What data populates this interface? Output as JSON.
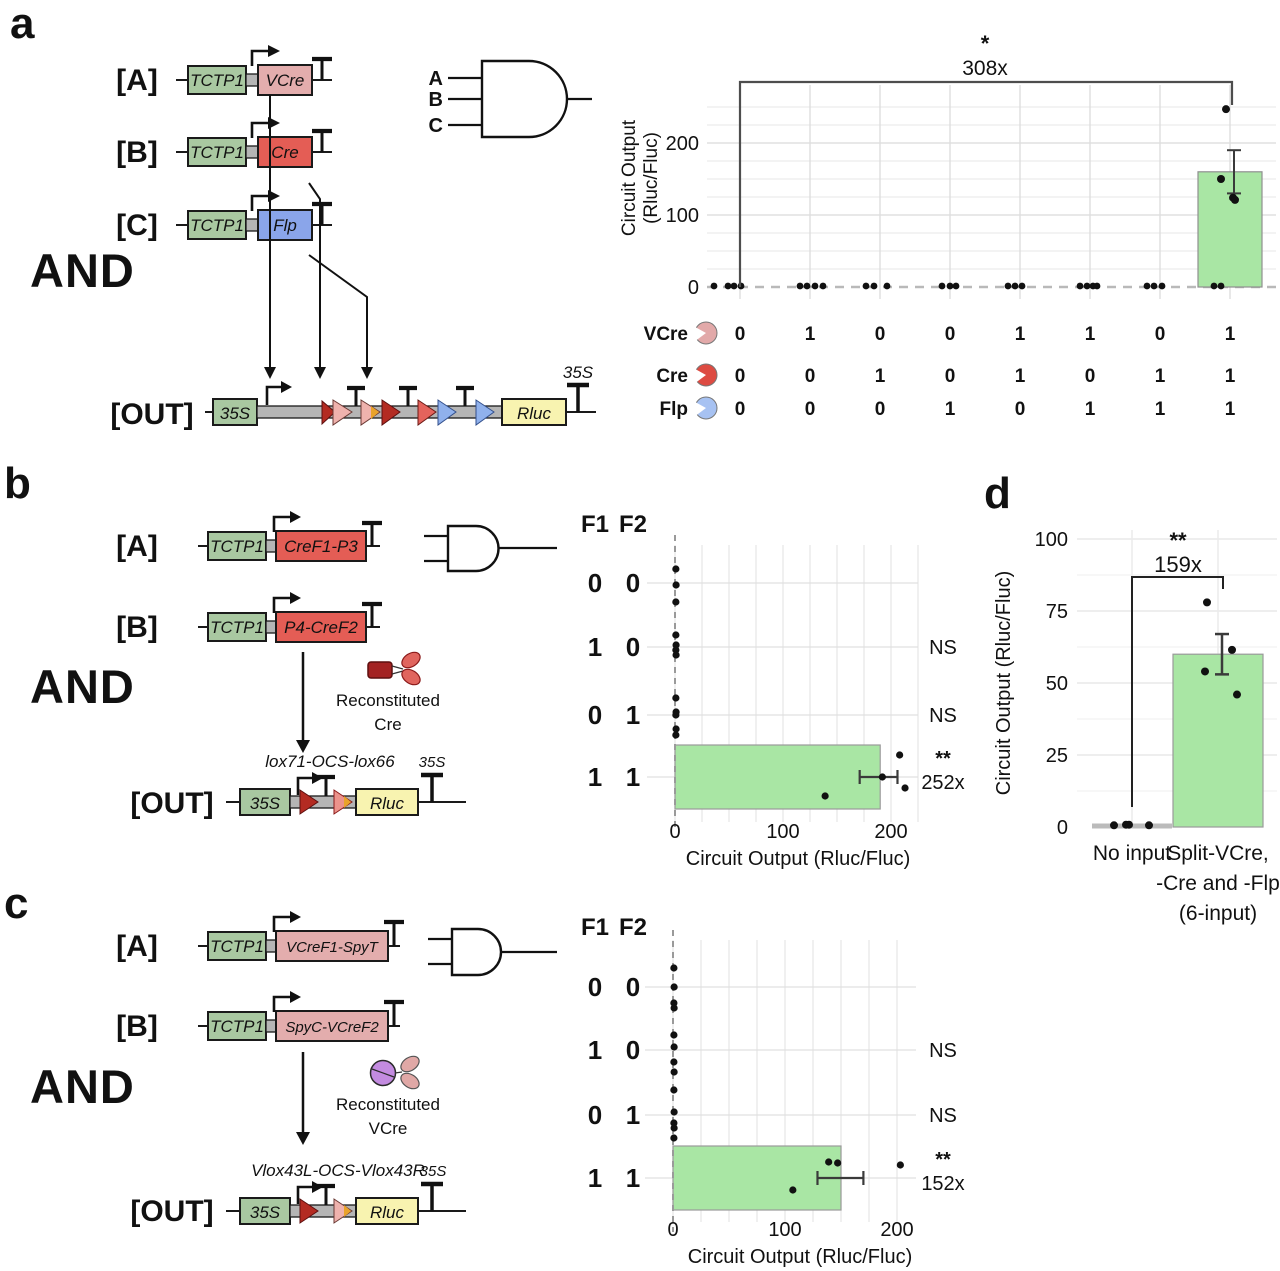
{
  "colors": {
    "promoter_green": "#a9c8a1",
    "vcre_pink": "#e3adad",
    "cre_red": "#e45d55",
    "flp_blue": "#8aa5ea",
    "rluc_yellow": "#f8f3b0",
    "bar_green": "#a9e6a4",
    "site_dark_red": "#b32b22",
    "vlox_pink": "#efb2ad",
    "lox66_pink": "#ec938c",
    "site_salmon": "#e4635c",
    "site_blue": "#90b1ec",
    "site_orange": "#e9a32b",
    "connector_gray": "#b5b5b5",
    "input_a": "#e9a6a6",
    "input_b": "#d94f4c",
    "input_c": "#90b2f0",
    "icon_dark_red": "#a32222",
    "icon_red_lobes": "#e0655e",
    "icon_purple": "#c38be0",
    "icon_pink_lobes": "#e0a8a6"
  },
  "panels": {
    "a": {
      "label": "a",
      "and_label": "AND",
      "constructs": [
        {
          "tag": "[A]",
          "promoter": "TCTP1",
          "gene": "VCre"
        },
        {
          "tag": "[B]",
          "promoter": "TCTP1",
          "gene": "Cre"
        },
        {
          "tag": "[C]",
          "promoter": "TCTP1",
          "gene": "Flp"
        }
      ],
      "gate_inputs": [
        "A",
        "B",
        "C"
      ],
      "out": {
        "tag": "[OUT]",
        "promoter": "35S",
        "gene": "Rluc",
        "terminator": "35S"
      }
    },
    "b": {
      "label": "b",
      "and_label": "AND",
      "constructs": [
        {
          "tag": "[A]",
          "promoter": "TCTP1",
          "gene": "CreF1-P3"
        },
        {
          "tag": "[B]",
          "promoter": "TCTP1",
          "gene": "P4-CreF2"
        }
      ],
      "reconstituted": [
        "Reconstituted",
        "Cre"
      ],
      "out": {
        "tag": "[OUT]",
        "promoter": "35S",
        "gene": "Rluc",
        "site_label": "lox71-OCS-lox66",
        "terminator": "35S"
      }
    },
    "c": {
      "label": "c",
      "and_label": "AND",
      "constructs": [
        {
          "tag": "[A]",
          "promoter": "TCTP1",
          "gene": "VCreF1-SpyT"
        },
        {
          "tag": "[B]",
          "promoter": "TCTP1",
          "gene": "SpyC-VCreF2"
        }
      ],
      "reconstituted": [
        "Reconstituted",
        "VCre"
      ],
      "out": {
        "tag": "[OUT]",
        "promoter": "35S",
        "gene": "Rluc",
        "site_label": "Vlox43L-OCS-Vlox43R",
        "terminator": "35S"
      }
    },
    "d": {
      "label": "d"
    }
  },
  "chart_data": [
    {
      "id": "a",
      "type": "bar",
      "orientation": "vertical",
      "ylabel_line1": "Circuit Output",
      "ylabel_line2": "(Rluc/Fluc)",
      "yticks": [
        0,
        100,
        200
      ],
      "ylim": [
        0,
        265
      ],
      "n_categories": 8,
      "values": [
        0,
        0,
        0,
        0,
        0,
        0,
        0,
        160
      ],
      "bar_points": [
        [
          -4,
          247
        ],
        [
          -9,
          150
        ],
        [
          3,
          124
        ],
        [
          5,
          121
        ]
      ],
      "bar_error": [
        130,
        190
      ],
      "zero_jitter": [
        [
          -26,
          -12,
          -6,
          1
        ],
        [
          -10,
          -3,
          5,
          13
        ],
        [
          -14,
          -6,
          7
        ],
        [
          -8,
          0,
          6
        ],
        [
          -12,
          -5,
          2
        ],
        [
          -10,
          -3,
          3,
          7
        ],
        [
          -13,
          -6,
          2
        ],
        [
          -16,
          -9
        ]
      ],
      "sig": {
        "star": "*",
        "fold": "308x"
      },
      "truth_table": {
        "rows": [
          {
            "label": "VCre",
            "icon_color": "#e2a9a9",
            "values": [
              "0",
              "1",
              "0",
              "0",
              "1",
              "1",
              "0",
              "1"
            ]
          },
          {
            "label": "Cre",
            "icon_color": "#dd4b42",
            "values": [
              "0",
              "0",
              "1",
              "0",
              "1",
              "0",
              "1",
              "1"
            ]
          },
          {
            "label": "Flp",
            "icon_color": "#a7c2f2",
            "values": [
              "0",
              "0",
              "0",
              "1",
              "0",
              "1",
              "1",
              "1"
            ]
          }
        ]
      }
    },
    {
      "id": "b",
      "type": "bar",
      "orientation": "horizontal",
      "header": [
        "F1",
        "F2"
      ],
      "xlabel": "Circuit Output (Rluc/Fluc)",
      "xticks": [
        0,
        100,
        200
      ],
      "xlim": [
        0,
        225
      ],
      "rows": [
        {
          "f": [
            "0",
            "0"
          ],
          "bar": null,
          "points": [
            [
              0.8,
              -14
            ],
            [
              1,
              2
            ],
            [
              0.8,
              19
            ]
          ],
          "note": null
        },
        {
          "f": [
            "1",
            "0"
          ],
          "bar": null,
          "points": [
            [
              0.8,
              -12
            ],
            [
              1,
              -2
            ],
            [
              0.8,
              3
            ],
            [
              1,
              8
            ]
          ],
          "note": "NS"
        },
        {
          "f": [
            "0",
            "1"
          ],
          "bar": null,
          "points": [
            [
              0.8,
              -17
            ],
            [
              1,
              -3
            ],
            [
              0.8,
              0
            ],
            [
              1,
              14
            ],
            [
              0.8,
              20
            ]
          ],
          "note": "NS"
        },
        {
          "f": [
            "1",
            "1"
          ],
          "bar": 190,
          "points": [
            [
              208,
              -22
            ],
            [
              192,
              0
            ],
            [
              213,
              11
            ],
            [
              139,
              19
            ]
          ],
          "error": [
            171,
            206
          ],
          "note_star": "**",
          "note_fold": "252x"
        }
      ]
    },
    {
      "id": "c",
      "type": "bar",
      "orientation": "horizontal",
      "header": [
        "F1",
        "F2"
      ],
      "xlabel": "Circuit Output (Rluc/Fluc)",
      "xticks": [
        0,
        100,
        200
      ],
      "xlim": [
        0,
        220
      ],
      "rows": [
        {
          "f": [
            "0",
            "0"
          ],
          "bar": null,
          "points": [
            [
              0.8,
              -19
            ],
            [
              1,
              0
            ],
            [
              0.8,
              16
            ],
            [
              1,
              21
            ]
          ],
          "note": null
        },
        {
          "f": [
            "1",
            "0"
          ],
          "bar": null,
          "points": [
            [
              0.8,
              -15
            ],
            [
              1,
              -3
            ],
            [
              0.8,
              12
            ],
            [
              1,
              22
            ]
          ],
          "note": "NS"
        },
        {
          "f": [
            "0",
            "1"
          ],
          "bar": null,
          "points": [
            [
              0.8,
              -25
            ],
            [
              1,
              -3
            ],
            [
              0.8,
              8
            ],
            [
              1,
              13
            ],
            [
              0.8,
              23
            ]
          ],
          "note": "NS"
        },
        {
          "f": [
            "1",
            "1"
          ],
          "bar": 150,
          "points": [
            [
              139,
              -16
            ],
            [
              147,
              -15
            ],
            [
              203,
              -13
            ],
            [
              107,
              12
            ]
          ],
          "error": [
            129,
            170
          ],
          "note_star": "**",
          "note_fold": "152x"
        }
      ]
    },
    {
      "id": "d",
      "type": "bar",
      "orientation": "vertical",
      "ylabel": "Circuit Output (Rluc/Fluc)",
      "yticks": [
        0,
        25,
        50,
        75,
        100
      ],
      "ylim": [
        0,
        100
      ],
      "categories": [
        [
          "No input"
        ],
        [
          "Split-VCre,",
          "-Cre and -Flp",
          "(6-input)"
        ]
      ],
      "values": [
        0.6,
        60
      ],
      "points": [
        [
          [
            -18,
            0.6
          ],
          [
            -6,
            0.8
          ],
          [
            -3,
            0.8
          ],
          [
            17,
            0.6
          ]
        ],
        [
          [
            -11,
            78
          ],
          [
            14,
            61.5
          ],
          [
            -13,
            54
          ],
          [
            19,
            46
          ]
        ]
      ],
      "error": [
        null,
        [
          53,
          67
        ]
      ],
      "sig": {
        "star": "**",
        "fold": "159x"
      }
    }
  ]
}
